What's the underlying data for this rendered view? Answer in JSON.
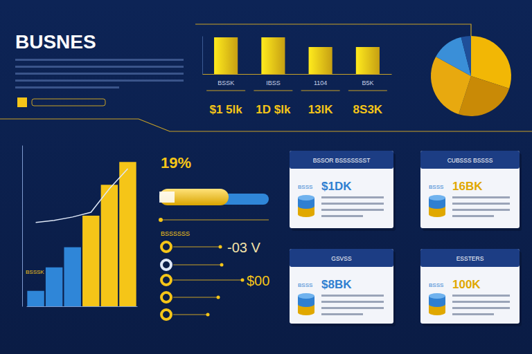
{
  "header": {
    "title": "BUSNES"
  },
  "chart_data": [
    {
      "type": "bar",
      "categories": [
        "BSSK",
        "IBSS",
        "1104",
        "B5K"
      ],
      "values": [
        53,
        53,
        39,
        39
      ],
      "color": "#f5c518",
      "ylim": [
        0,
        55
      ],
      "tick_labels": "x",
      "annotations": [
        "$1 5lk",
        "1D $lk",
        "13lK",
        "8S3K"
      ]
    },
    {
      "type": "pie",
      "values": [
        30,
        25,
        28,
        13,
        4
      ],
      "colors": [
        "#f2b705",
        "#c98a06",
        "#e8a90f",
        "#3a8fd8",
        "#1f4f9a"
      ]
    },
    {
      "type": "bar",
      "categories": [
        null,
        null,
        null,
        null,
        null,
        null
      ],
      "ylim": [
        0,
        240
      ],
      "tick_labels": false,
      "annotations": [
        "BSSSK"
      ],
      "series": [
        {
          "type": "bar",
          "colors": [
            "#2f86d8",
            "#2f86d8",
            "#2f86d8",
            "#f5c518",
            "#f5c518",
            "#f5c518"
          ],
          "values": [
            23,
            58,
            88,
            135,
            181,
            215
          ]
        },
        {
          "type": "line",
          "color": "#dfe8f7",
          "values": [
            125,
            128,
            133,
            140,
            175,
            205
          ]
        }
      ]
    }
  ],
  "panel": {
    "headline": "19%",
    "label": "BSSSSSS",
    "readings": [
      "-03 V",
      "$00"
    ]
  },
  "cards": [
    {
      "title": "BSSOR BSSSSSSST",
      "tag": "BSSS",
      "value": "$1DK",
      "color": "#2f7fd1"
    },
    {
      "title": "CUBSSS BSSSS",
      "tag": "BSSS",
      "value": "16BK",
      "color": "#e0a800"
    },
    {
      "title": "GSVSS",
      "tag": "BSSS",
      "value": "$8BK",
      "color": "#2f7fd1"
    },
    {
      "title": "ESSTERS",
      "tag": "BSSS",
      "value": "100K",
      "color": "#e0a800"
    }
  ]
}
